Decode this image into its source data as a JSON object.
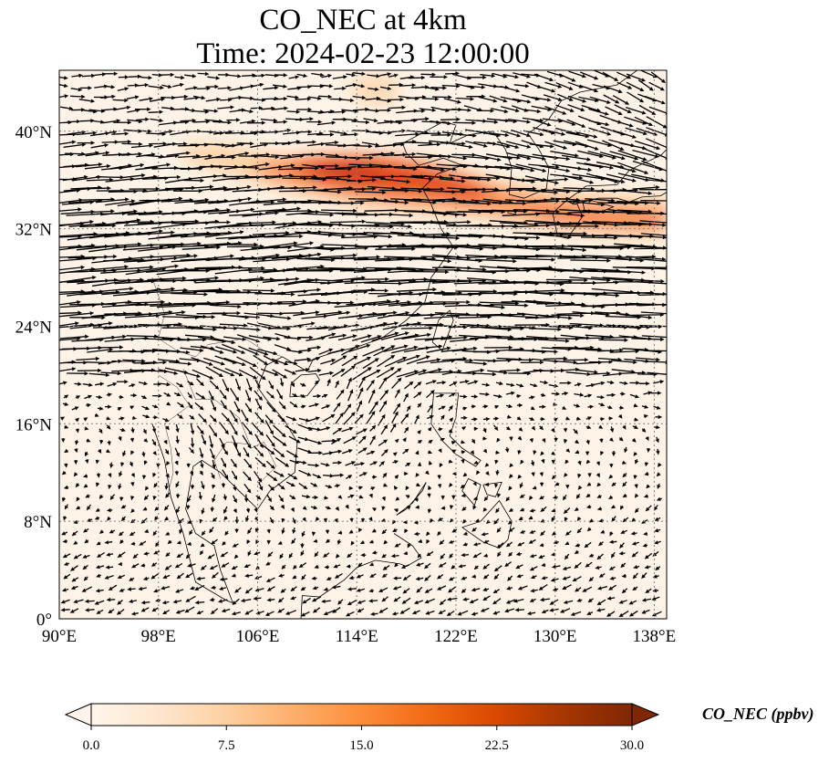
{
  "title": {
    "line1": "CO_NEC at 4km",
    "line2": "Time: 2024-02-23 12:00:00"
  },
  "map": {
    "lon_range": [
      90,
      139
    ],
    "lat_range": [
      0,
      45
    ],
    "gridlines": true,
    "lon_ticks": [
      "90°E",
      "98°E",
      "106°E",
      "114°E",
      "122°E",
      "130°E",
      "138°E"
    ],
    "lat_ticks": [
      "0°",
      "8°N",
      "16°N",
      "24°N",
      "32°N",
      "40°N"
    ],
    "field": "CO_NEC concentration (ppbv), highest in a plume along ~34-37°N from ~104°E to 139°E",
    "vectors": "wind arrows; strong westerlies north of ~20°N, cyclonic circulation near 110°E 18°N, weak flow over the south"
  },
  "colorbar": {
    "label": "CO_NEC (ppbv)",
    "ticks": [
      "0.0",
      "7.5",
      "15.0",
      "22.5",
      "30.0"
    ],
    "range": [
      0,
      30
    ],
    "extend": "both",
    "colormap": [
      "#fff5eb",
      "#fee6ce",
      "#fdd0a2",
      "#fdae6b",
      "#fd8d3c",
      "#f16913",
      "#d94801",
      "#a63603",
      "#7f2704"
    ]
  }
}
